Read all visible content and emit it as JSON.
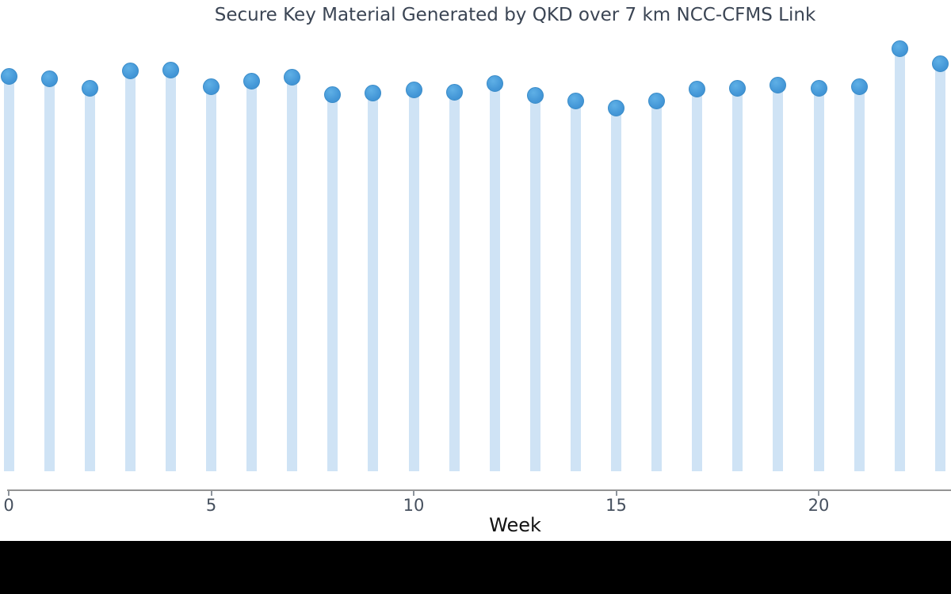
{
  "chart_data": {
    "type": "stem",
    "title": "Secure Key Material Generated by QKD over 7 km NCC-CFMS Link",
    "xlabel": "Week",
    "ylabel": "",
    "x": [
      0,
      1,
      2,
      3,
      4,
      5,
      6,
      7,
      8,
      9,
      10,
      11,
      12,
      13,
      14,
      15,
      16,
      17,
      18,
      19,
      20,
      21,
      22,
      23
    ],
    "values": [
      93.3,
      92.7,
      90.6,
      94.6,
      94.9,
      91.0,
      92.3,
      93.1,
      89.1,
      89.5,
      90.1,
      89.7,
      91.6,
      88.8,
      87.5,
      85.8,
      87.6,
      90.4,
      90.6,
      91.2,
      90.6,
      91.0,
      100.0,
      96.3
    ],
    "value_note": "y-axis not visible in screenshot; values are estimated relative stem heights normalized so max (week 22) = 100",
    "x_ticks": [
      0,
      5,
      10,
      15,
      20
    ],
    "x_range": [
      0,
      23
    ],
    "grid": false,
    "legend": "none",
    "colors": {
      "stem": "#cfe3f5",
      "dot_fill": "#4598d8",
      "dot_edge": "#3a8cc9",
      "axis_line": "#949494",
      "tick_label": "#46505e",
      "title": "#3b4554",
      "xlabel": "#121212",
      "chart_background": "#ffffff",
      "letterbox": "#000000"
    }
  }
}
